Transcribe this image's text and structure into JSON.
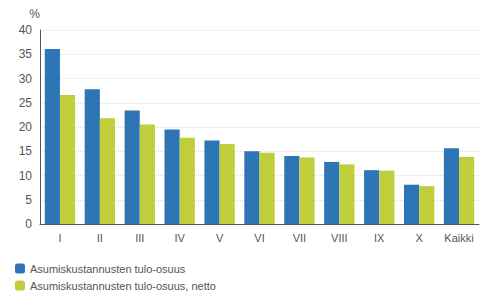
{
  "chart_data": {
    "type": "bar",
    "ylabel": "%",
    "categories": [
      "I",
      "II",
      "III",
      "IV",
      "V",
      "VI",
      "VII",
      "VIII",
      "IX",
      "X",
      "Kaikki"
    ],
    "series": [
      {
        "name": "Asumiskustannusten tulo-osuus",
        "color": "#2E75B6",
        "values": [
          36.1,
          27.8,
          23.4,
          19.5,
          17.2,
          15.0,
          14.0,
          12.8,
          11.1,
          8.1,
          15.6
        ]
      },
      {
        "name": "Asumiskustannusten tulo-osuus, netto",
        "color": "#BFCE3A",
        "values": [
          26.6,
          21.8,
          20.5,
          17.8,
          16.5,
          14.7,
          13.7,
          12.3,
          11.0,
          7.8,
          13.8
        ]
      }
    ],
    "ylim": [
      0,
      40
    ],
    "yticks": [
      0,
      5,
      10,
      15,
      20,
      25,
      30,
      35,
      40
    ],
    "grid": true,
    "legend": "lower left"
  }
}
